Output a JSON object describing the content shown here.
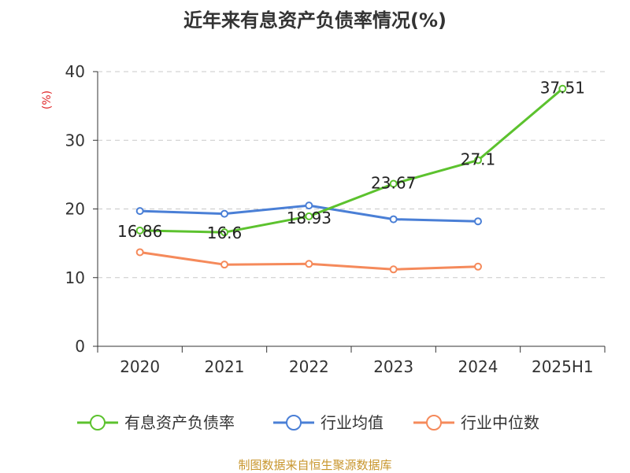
{
  "title": "近年来有息资产负债率情况(%)",
  "source": "制图数据来自恒生聚源数据库",
  "chart_data": {
    "type": "line",
    "categories": [
      "2020",
      "2021",
      "2022",
      "2023",
      "2024",
      "2025H1"
    ],
    "ylabel": "(%)",
    "ylim": [
      0,
      40
    ],
    "yticks": [
      0,
      10,
      20,
      30,
      40
    ],
    "grid": true,
    "legend_position": "bottom",
    "series": [
      {
        "name": "有息资产负债率",
        "color": "#5cc22e",
        "values": [
          16.86,
          16.6,
          18.93,
          23.67,
          27.1,
          37.51
        ],
        "labels": [
          "16.86",
          "16.6",
          "18.93",
          "23.67",
          "27.1",
          "37.51"
        ]
      },
      {
        "name": "行业均值",
        "color": "#4a7fd6",
        "values": [
          19.7,
          19.3,
          20.5,
          18.5,
          18.2,
          null
        ]
      },
      {
        "name": "行业中位数",
        "color": "#f58a5b",
        "values": [
          13.7,
          11.9,
          12.0,
          11.2,
          11.6,
          null
        ]
      }
    ]
  }
}
